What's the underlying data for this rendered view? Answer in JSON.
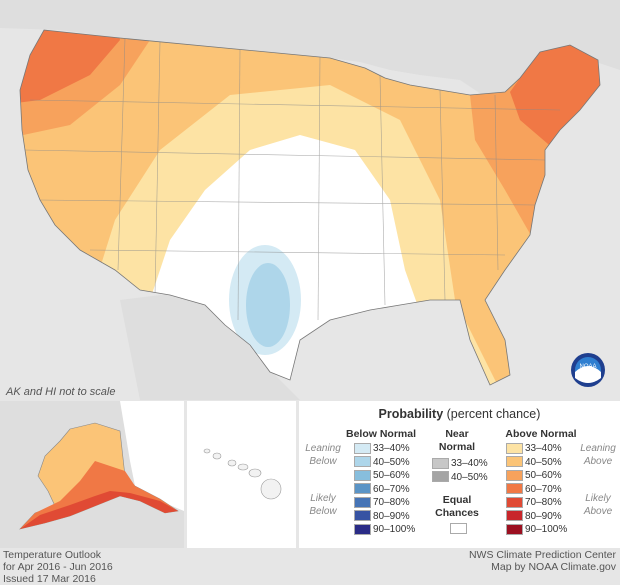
{
  "map": {
    "scale_note": "AK and HI not to scale",
    "logo_text": "NOAA"
  },
  "legend": {
    "title": "Probability",
    "subtitle": "(percent chance)",
    "below": {
      "heading": "Below Normal",
      "leaning": [
        "Leaning",
        "Below"
      ],
      "likely": [
        "Likely",
        "Below"
      ],
      "items": [
        {
          "label": "33–40%",
          "color": "#d4eaf4"
        },
        {
          "label": "40–50%",
          "color": "#aed6ea"
        },
        {
          "label": "50–60%",
          "color": "#87bedd"
        },
        {
          "label": "60–70%",
          "color": "#5b94c6"
        },
        {
          "label": "70–80%",
          "color": "#4674b6"
        },
        {
          "label": "80–90%",
          "color": "#3753a3"
        },
        {
          "label": "90–100%",
          "color": "#2a2b86"
        }
      ]
    },
    "near": {
      "heading": [
        "Near",
        "Normal"
      ],
      "items": [
        {
          "label": "33–40%",
          "color": "#c7c7c7"
        },
        {
          "label": "40–50%",
          "color": "#a4a4a4"
        }
      ]
    },
    "equal": {
      "heading": [
        "Equal",
        "Chances"
      ],
      "color": "#ffffff"
    },
    "above": {
      "heading": "Above Normal",
      "leaning": [
        "Leaning",
        "Above"
      ],
      "likely": [
        "Likely",
        "Above"
      ],
      "items": [
        {
          "label": "33–40%",
          "color": "#fde3a4"
        },
        {
          "label": "40–50%",
          "color": "#fbc477"
        },
        {
          "label": "50–60%",
          "color": "#f7a25c"
        },
        {
          "label": "60–70%",
          "color": "#f07845"
        },
        {
          "label": "70–80%",
          "color": "#e04a34"
        },
        {
          "label": "80–90%",
          "color": "#c8262b"
        },
        {
          "label": "90–100%",
          "color": "#9c0f20"
        }
      ]
    }
  },
  "footer": {
    "left": [
      "Temperature Outlook",
      "for Apr 2016 - Jun 2016",
      "Issued 17 Mar 2016"
    ],
    "right": [
      "NWS Climate Prediction Center",
      "Map by NOAA Climate.gov"
    ]
  }
}
